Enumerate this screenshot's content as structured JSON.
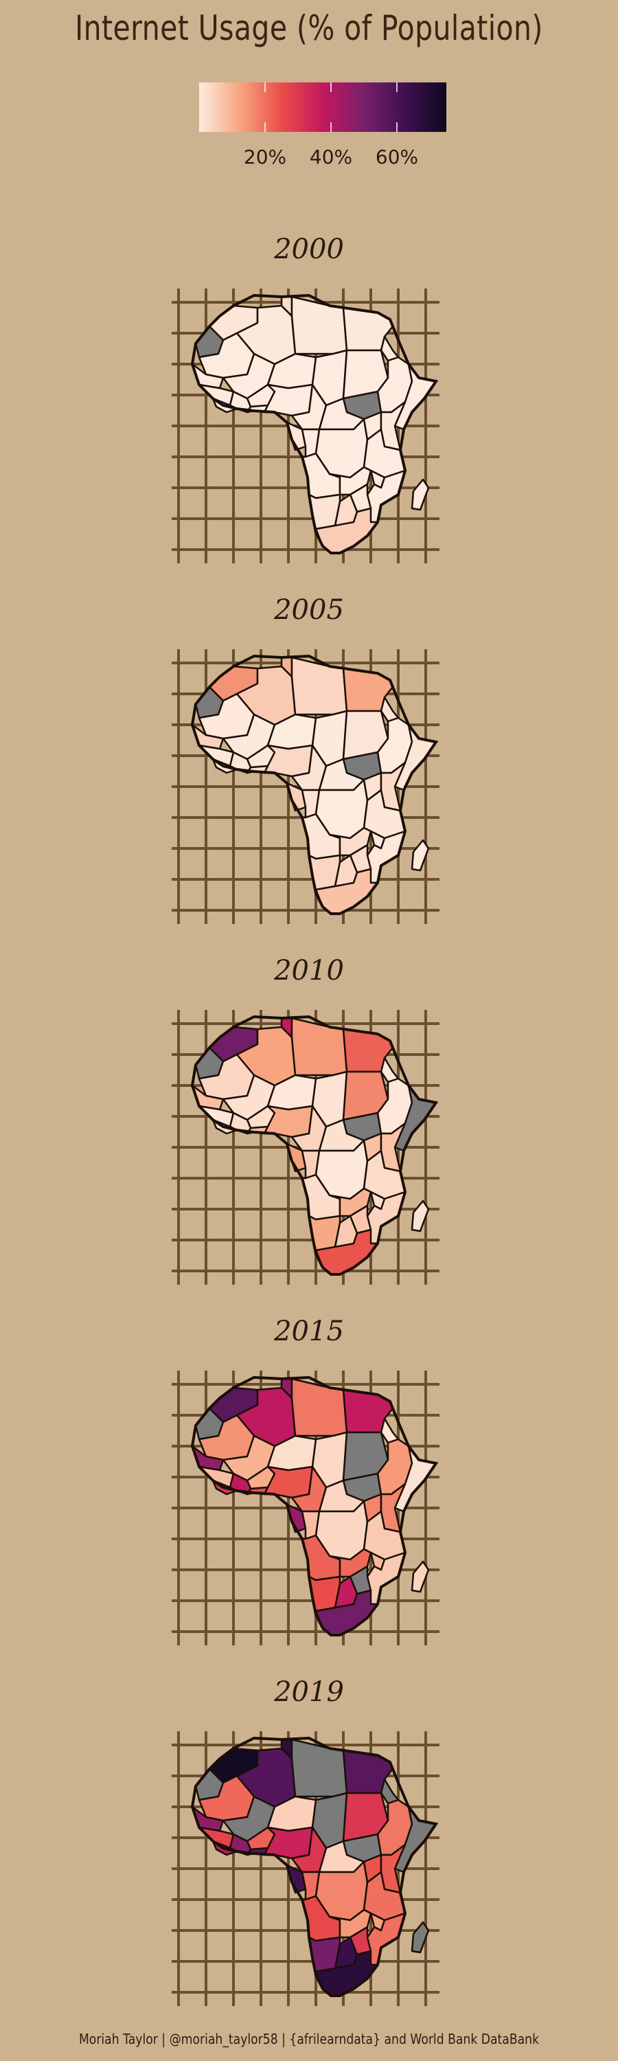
{
  "chart_data": {
    "type": "choropleth-map",
    "title": "Internet Usage (% of Population)",
    "colorbar": {
      "ticks": [
        {
          "value": 20,
          "label": "20%"
        },
        {
          "value": 40,
          "label": "40%"
        },
        {
          "value": 60,
          "label": "60%"
        }
      ],
      "range": [
        0,
        75
      ],
      "colors": [
        "#fdece0",
        "#f7a47f",
        "#ea4d49",
        "#c2195f",
        "#7a1f6b",
        "#3f1050",
        "#0f0920"
      ]
    },
    "missing_color": "#7b7b7b",
    "panels": [
      {
        "year_label": "2000",
        "values": {
          "Morocco": 1,
          "Algeria": 0.5,
          "Tunisia": 3,
          "Libya": 0.5,
          "Egypt": 0.5,
          "Western Sahara": null,
          "Mauritania": 0.2,
          "Mali": 0.1,
          "Niger": 0.1,
          "Chad": 0.1,
          "Sudan": 0.1,
          "South Sudan": null,
          "Eritrea": 0.1,
          "Ethiopia": 0.1,
          "Somalia": 0.1,
          "Senegal": 0.4,
          "Guinea": 0.1,
          "West Coast": 0.2,
          "Ivory Coast": 0.2,
          "Ghana": 0.2,
          "Burkina Faso": 0.1,
          "Nigeria": 0.1,
          "Cameroon": 0.2,
          "Central African Republic": 0.1,
          "Gabon": 1,
          "Congo": 0.1,
          "DR Congo": 0.1,
          "Uganda": 0.2,
          "Kenya": 0.3,
          "Tanzania": 0.1,
          "Angola": 0.1,
          "Zambia": 0.2,
          "Malawi": 0.1,
          "Mozambique": 0.1,
          "Namibia": 1.5,
          "Botswana": 3,
          "Zimbabwe": 0.4,
          "South Africa": 5.5,
          "Madagascar": 0.2
        }
      },
      {
        "year_label": "2005",
        "values": {
          "Morocco": 15,
          "Algeria": 6,
          "Tunisia": 10,
          "Libya": 4,
          "Egypt": 12,
          "Western Sahara": null,
          "Mauritania": 0.7,
          "Mali": 0.5,
          "Niger": 0.2,
          "Chad": 0.4,
          "Sudan": 1.3,
          "South Sudan": null,
          "Eritrea": 1.5,
          "Ethiopia": 0.2,
          "Somalia": 1.1,
          "Senegal": 4.8,
          "Guinea": 0.5,
          "West Coast": 1.5,
          "Ivory Coast": 1,
          "Ghana": 1.8,
          "Burkina Faso": 0.5,
          "Nigeria": 3.5,
          "Cameroon": 1.4,
          "Central African Republic": 0.3,
          "Gabon": 4.9,
          "Congo": 1.5,
          "DR Congo": 0.2,
          "Uganda": 1.7,
          "Kenya": 3.1,
          "Tanzania": 1.1,
          "Angola": 1.1,
          "Zambia": 2.9,
          "Malawi": 0.4,
          "Mozambique": 0.9,
          "Namibia": 4,
          "Botswana": 3.3,
          "Zimbabwe": 2.4,
          "South Africa": 7.5,
          "Madagascar": 0.6
        }
      },
      {
        "year_label": "2010",
        "values": {
          "Morocco": 52,
          "Algeria": 12.5,
          "Tunisia": 37,
          "Libya": 14,
          "Egypt": 22,
          "Western Sahara": null,
          "Mauritania": 4,
          "Mali": 2,
          "Niger": 0.8,
          "Chad": 1.7,
          "Sudan": 16.7,
          "South Sudan": null,
          "Eritrea": 0.6,
          "Ethiopia": 0.8,
          "Somalia": null,
          "Senegal": 8,
          "Guinea": 1,
          "West Coast": 3,
          "Ivory Coast": 2.7,
          "Ghana": 7.8,
          "Burkina Faso": 2.4,
          "Nigeria": 11.5,
          "Cameroon": 4.3,
          "Central African Republic": 2,
          "Gabon": 13,
          "Congo": 5,
          "DR Congo": 0.7,
          "Uganda": 7.7,
          "Kenya": 7.2,
          "Tanzania": 2.9,
          "Angola": 2.8,
          "Zambia": 10,
          "Malawi": 2.3,
          "Mozambique": 4.2,
          "Namibia": 11.6,
          "Botswana": 6,
          "Zimbabwe": 6.4,
          "South Africa": 24,
          "Madagascar": 1.7
        }
      },
      {
        "year_label": "2015",
        "values": {
          "Morocco": 57,
          "Algeria": 38,
          "Tunisia": 46,
          "Libya": 19,
          "Egypt": 37,
          "Western Sahara": null,
          "Mauritania": 15,
          "Mali": 10,
          "Niger": 2.5,
          "Chad": 3.5,
          "Sudan": null,
          "South Sudan": null,
          "Eritrea": 1.1,
          "Ethiopia": 13.9,
          "Somalia": 1.8,
          "Senegal": 46,
          "Guinea": 8,
          "West Coast": 30,
          "Ivory Coast": 38,
          "Ghana": 26,
          "Burkina Faso": 11,
          "Nigeria": 24,
          "Cameroon": 20,
          "Central African Republic": 4,
          "Gabon": 45,
          "Congo": 8,
          "DR Congo": 3.8,
          "Uganda": 17,
          "Kenya": 16.6,
          "Tanzania": 6,
          "Angola": 22,
          "Zambia": 21,
          "Malawi": 9,
          "Mozambique": 6,
          "Namibia": 25,
          "Botswana": 37,
          "Zimbabwe": null,
          "South Africa": 51.9,
          "Madagascar": 4.2
        }
      },
      {
        "year_label": "2019",
        "values": {
          "Morocco": 74,
          "Algeria": 58,
          "Tunisia": 67,
          "Libya": null,
          "Egypt": 57,
          "Western Sahara": null,
          "Mauritania": 21,
          "Mali": null,
          "Niger": 5,
          "Chad": null,
          "Sudan": 30,
          "South Sudan": null,
          "Eritrea": null,
          "Ethiopia": 19,
          "Somalia": null,
          "Senegal": 46,
          "Guinea": 27,
          "West Coast": 40,
          "Ivory Coast": 46.8,
          "Ghana": 58,
          "Burkina Faso": 22,
          "Nigeria": 35,
          "Cameroon": 30,
          "Central African Republic": 4.3,
          "Gabon": 62,
          "Congo": 20,
          "DR Congo": 17,
          "Uganda": 24,
          "Kenya": 23,
          "Tanzania": 20,
          "Angola": 26,
          "Zambia": 14,
          "Malawi": 13,
          "Mozambique": 20,
          "Namibia": 51,
          "Botswana": 64,
          "Zimbabwe": 29,
          "South Africa": 68,
          "Madagascar": null
        }
      }
    ]
  },
  "caption": "Moriah Taylor | @moriah_taylor58 | {afrilearndata} and World Bank DataBank"
}
